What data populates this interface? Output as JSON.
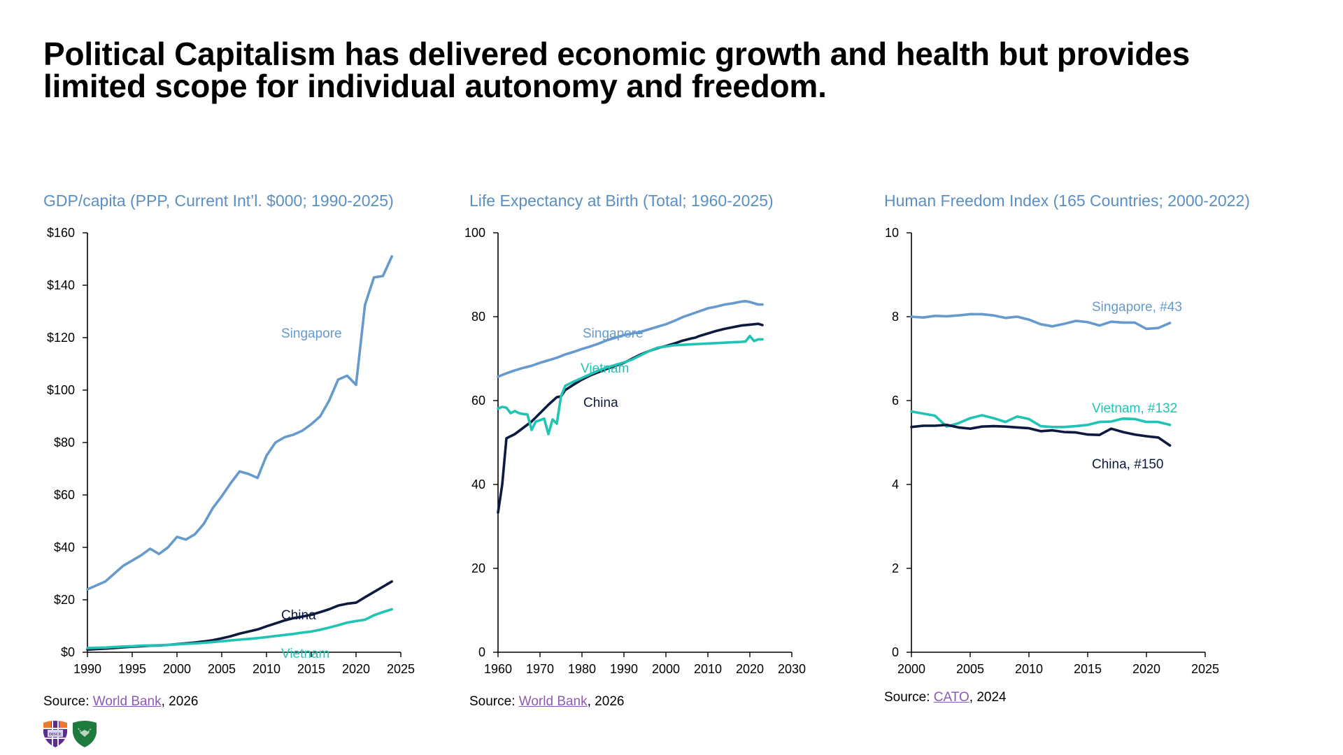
{
  "slide": {
    "title_line1": "Political Capitalism has delivered economic growth and health but provides",
    "title_line2": "limited scope for individual autonomy and freedom."
  },
  "colors": {
    "singapore": "#6699cc",
    "china": "#0d1a3f",
    "vietnam": "#1fc4b4",
    "chart_title": "#5b8fc2",
    "link": "#8a5bb5"
  },
  "logos": [
    {
      "name": "shield-logo-purple-orange",
      "text": "DISCE"
    },
    {
      "name": "shield-logo-green",
      "text": ""
    }
  ],
  "chart_data": [
    {
      "type": "line",
      "title": "GDP/capita (PPP, Current Int’l. $000; 1990-2025)",
      "xlabel": "",
      "ylabel": "",
      "xlim": [
        1990,
        2025
      ],
      "ylim": [
        0,
        160
      ],
      "xticks": [
        1990,
        1995,
        2000,
        2005,
        2010,
        2015,
        2020,
        2025
      ],
      "xtick_labels": [
        "1990",
        "1995",
        "2000",
        "2005",
        "2010",
        "2015",
        "2020",
        "2025"
      ],
      "yticks": [
        0,
        20,
        40,
        60,
        80,
        100,
        120,
        140,
        160
      ],
      "ytick_labels": [
        "$0",
        "$20",
        "$40",
        "$60",
        "$80",
        "$100",
        "$120",
        "$140",
        "$160"
      ],
      "grid": false,
      "legend": "inline-labels",
      "source": {
        "prefix": "Source: ",
        "link": "World Bank",
        "suffix": ", 2026"
      },
      "x": [
        1990,
        1991,
        1992,
        1993,
        1994,
        1995,
        1996,
        1997,
        1998,
        1999,
        2000,
        2001,
        2002,
        2003,
        2004,
        2005,
        2006,
        2007,
        2008,
        2009,
        2010,
        2011,
        2012,
        2013,
        2014,
        2015,
        2016,
        2017,
        2018,
        2019,
        2020,
        2021,
        2022,
        2023,
        2024
      ],
      "series": [
        {
          "name": "Singapore",
          "label": "Singapore",
          "color_key": "singapore",
          "values": [
            24,
            25.5,
            27,
            30,
            33,
            35,
            37,
            39.5,
            37.5,
            40,
            44,
            43,
            45,
            49,
            55,
            59.5,
            64.5,
            69,
            68,
            66.5,
            75,
            80,
            82,
            83,
            84.5,
            87,
            90,
            96,
            104,
            105.5,
            102,
            132.5,
            143,
            143.5,
            151
          ]
        },
        {
          "name": "China",
          "label": "China",
          "color_key": "china",
          "values": [
            1.0,
            1.2,
            1.4,
            1.6,
            1.9,
            2.1,
            2.3,
            2.5,
            2.6,
            2.8,
            3.1,
            3.4,
            3.7,
            4.1,
            4.6,
            5.3,
            6.1,
            7.1,
            7.9,
            8.7,
            9.9,
            11.0,
            12.1,
            13.0,
            13.6,
            14.3,
            15.3,
            16.4,
            17.8,
            18.5,
            18.9,
            21.0,
            23.0,
            25.0,
            27.0
          ]
        },
        {
          "name": "Vietnam",
          "label": "Vietnam",
          "color_key": "vietnam",
          "values": [
            1.6,
            1.7,
            1.8,
            2.0,
            2.2,
            2.3,
            2.5,
            2.6,
            2.7,
            2.8,
            3.0,
            3.2,
            3.4,
            3.6,
            3.9,
            4.2,
            4.5,
            4.8,
            5.1,
            5.4,
            5.8,
            6.2,
            6.6,
            7.0,
            7.5,
            7.9,
            8.6,
            9.4,
            10.3,
            11.3,
            11.9,
            12.4,
            14.1,
            15.3,
            16.4
          ]
        }
      ]
    },
    {
      "type": "line",
      "title": "Life Expectancy at Birth (Total; 1960-2025)",
      "xlabel": "",
      "ylabel": "",
      "xlim": [
        1960,
        2030
      ],
      "ylim": [
        0,
        100
      ],
      "xticks": [
        1960,
        1970,
        1980,
        1990,
        2000,
        2010,
        2020,
        2030
      ],
      "xtick_labels": [
        "1960",
        "1970",
        "1980",
        "1990",
        "2000",
        "2010",
        "2020",
        "2030"
      ],
      "yticks": [
        0,
        20,
        40,
        60,
        80,
        100
      ],
      "ytick_labels": [
        "0",
        "20",
        "40",
        "60",
        "80",
        "100"
      ],
      "grid": false,
      "legend": "inline-labels",
      "source": {
        "prefix": "Source: ",
        "link": "World Bank",
        "suffix": ", 2026"
      },
      "series": [
        {
          "name": "Singapore",
          "label": "Singapore",
          "color_key": "singapore",
          "x": [
            1960,
            1962,
            1964,
            1966,
            1968,
            1970,
            1972,
            1974,
            1976,
            1978,
            1980,
            1982,
            1984,
            1986,
            1988,
            1990,
            1992,
            1994,
            1996,
            1998,
            2000,
            2002,
            2004,
            2006,
            2008,
            2010,
            2012,
            2014,
            2016,
            2018,
            2019,
            2020,
            2021,
            2022,
            2023
          ],
          "values": [
            65.7,
            66.5,
            67.2,
            67.8,
            68.3,
            69.0,
            69.6,
            70.2,
            71.0,
            71.6,
            72.3,
            72.9,
            73.6,
            74.4,
            75.0,
            75.6,
            76.0,
            76.4,
            77.0,
            77.6,
            78.2,
            79.0,
            79.9,
            80.6,
            81.3,
            82.0,
            82.4,
            82.9,
            83.2,
            83.6,
            83.7,
            83.5,
            83.2,
            82.9,
            82.9
          ]
        },
        {
          "name": "China",
          "label": "China",
          "color_key": "china",
          "x": [
            1960,
            1961,
            1962,
            1964,
            1966,
            1968,
            1970,
            1972,
            1974,
            1975,
            1976,
            1978,
            1980,
            1982,
            1984,
            1986,
            1988,
            1990,
            1992,
            1994,
            1996,
            1998,
            2000,
            2002,
            2004,
            2006,
            2007,
            2008,
            2010,
            2012,
            2014,
            2016,
            2017,
            2018,
            2020,
            2022,
            2023
          ],
          "values": [
            33.3,
            40.0,
            51.0,
            52.0,
            53.5,
            55.0,
            57.0,
            59.0,
            60.8,
            61.0,
            62.5,
            63.8,
            65.0,
            66.0,
            66.8,
            67.6,
            68.3,
            69.0,
            70.0,
            71.0,
            71.8,
            72.5,
            73.0,
            73.6,
            74.3,
            74.8,
            75.0,
            75.4,
            76.0,
            76.6,
            77.1,
            77.5,
            77.7,
            77.9,
            78.1,
            78.3,
            78.0
          ]
        },
        {
          "name": "Vietnam",
          "label": "Vietnam",
          "color_key": "vietnam",
          "x": [
            1960,
            1961,
            1962,
            1963,
            1964,
            1965,
            1966,
            1967,
            1968,
            1969,
            1970,
            1971,
            1972,
            1973,
            1974,
            1975,
            1976,
            1978,
            1980,
            1982,
            1984,
            1986,
            1988,
            1990,
            1992,
            1994,
            1996,
            1998,
            2000,
            2002,
            2004,
            2006,
            2008,
            2010,
            2012,
            2014,
            2016,
            2018,
            2019,
            2020,
            2021,
            2022,
            2023
          ],
          "values": [
            58.1,
            58.5,
            58.3,
            57.0,
            57.5,
            57.0,
            56.8,
            56.7,
            53.0,
            55.0,
            55.3,
            55.7,
            52.0,
            55.5,
            54.5,
            61.0,
            63.5,
            64.5,
            65.4,
            66.3,
            67.2,
            67.9,
            68.5,
            69.1,
            69.8,
            70.8,
            71.8,
            72.6,
            72.9,
            73.2,
            73.3,
            73.4,
            73.5,
            73.6,
            73.7,
            73.8,
            73.9,
            74.0,
            74.1,
            75.4,
            74.2,
            74.6,
            74.6
          ]
        }
      ]
    },
    {
      "type": "line",
      "title": "Human Freedom Index (165 Countries; 2000-2022)",
      "xlabel": "",
      "ylabel": "",
      "xlim": [
        2000,
        2025
      ],
      "ylim": [
        0,
        10
      ],
      "xticks": [
        2000,
        2005,
        2010,
        2015,
        2020,
        2025
      ],
      "xtick_labels": [
        "2000",
        "2005",
        "2010",
        "2015",
        "2020",
        "2025"
      ],
      "yticks": [
        0,
        2,
        4,
        6,
        8,
        10
      ],
      "ytick_labels": [
        "0",
        "2",
        "4",
        "6",
        "8",
        "10"
      ],
      "grid": false,
      "legend": "inline-labels",
      "source": {
        "prefix": "Source: ",
        "link": "CATO",
        "suffix": ", 2024"
      },
      "x": [
        2000,
        2001,
        2002,
        2003,
        2004,
        2005,
        2006,
        2007,
        2008,
        2009,
        2010,
        2011,
        2012,
        2013,
        2014,
        2015,
        2016,
        2017,
        2018,
        2019,
        2020,
        2021,
        2022
      ],
      "series": [
        {
          "name": "Singapore",
          "label": "Singapore, #43",
          "color_key": "singapore",
          "values": [
            8.0,
            7.98,
            8.02,
            8.01,
            8.03,
            8.06,
            8.06,
            8.03,
            7.97,
            8.0,
            7.93,
            7.82,
            7.77,
            7.83,
            7.9,
            7.87,
            7.79,
            7.88,
            7.86,
            7.86,
            7.71,
            7.73,
            7.85
          ]
        },
        {
          "name": "Vietnam",
          "label": "Vietnam, #132",
          "color_key": "vietnam",
          "values": [
            5.74,
            5.69,
            5.64,
            5.38,
            5.46,
            5.58,
            5.65,
            5.58,
            5.49,
            5.62,
            5.56,
            5.39,
            5.37,
            5.37,
            5.39,
            5.42,
            5.49,
            5.5,
            5.57,
            5.56,
            5.49,
            5.49,
            5.42
          ]
        },
        {
          "name": "China",
          "label": "China, #150",
          "color_key": "china",
          "values": [
            5.37,
            5.4,
            5.4,
            5.42,
            5.36,
            5.33,
            5.38,
            5.39,
            5.38,
            5.36,
            5.34,
            5.27,
            5.29,
            5.25,
            5.24,
            5.19,
            5.18,
            5.33,
            5.25,
            5.19,
            5.15,
            5.12,
            4.93
          ]
        }
      ]
    }
  ]
}
